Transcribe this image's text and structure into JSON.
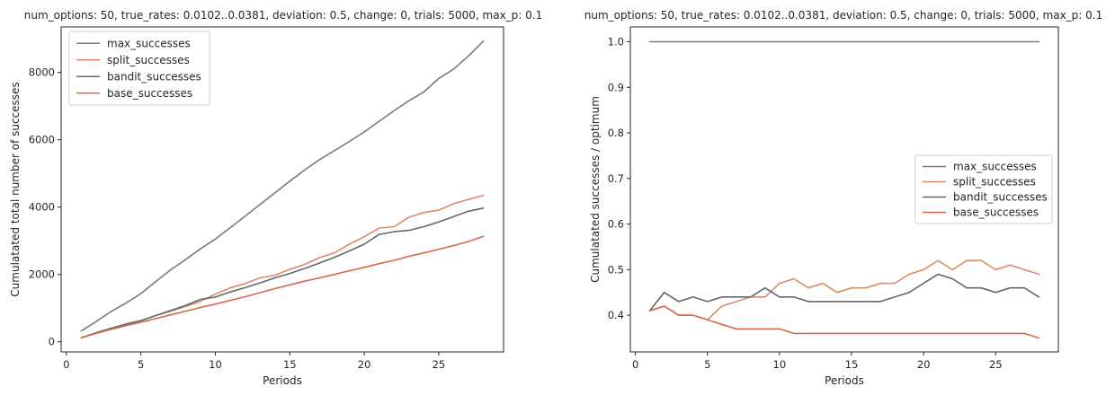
{
  "chart_data": [
    {
      "type": "line",
      "title": "num_options: 50, true_rates: 0.0102..0.0381, deviation: 0.5, change: 0, trials: 5000, max_p: 0.1",
      "xlabel": "Periods",
      "ylabel": "Cumulatated total number of successes",
      "xlim": [
        -0.35,
        29.35
      ],
      "ylim": [
        -300,
        9350
      ],
      "xticks": [
        0,
        5,
        10,
        15,
        20,
        25
      ],
      "yticks": [
        0,
        2000,
        4000,
        6000,
        8000
      ],
      "xtick_labels": [
        "0",
        "5",
        "10",
        "15",
        "20",
        "25"
      ],
      "ytick_labels": [
        "0",
        "2000",
        "4000",
        "6000",
        "8000"
      ],
      "grid": false,
      "legend_position": "upper-left",
      "x": [
        1,
        2,
        3,
        4,
        5,
        6,
        7,
        8,
        9,
        10,
        11,
        12,
        13,
        14,
        15,
        16,
        17,
        18,
        19,
        20,
        21,
        22,
        23,
        24,
        25,
        26,
        27,
        28
      ],
      "series": [
        {
          "name": "max_successes",
          "color": "#7a7a7a",
          "values": [
            320,
            600,
            900,
            1150,
            1430,
            1790,
            2140,
            2440,
            2760,
            3050,
            3390,
            3730,
            4080,
            4420,
            4770,
            5100,
            5410,
            5680,
            5950,
            6230,
            6550,
            6860,
            7160,
            7420,
            7820,
            8100,
            8490,
            8930
          ]
        },
        {
          "name": "split_successes",
          "color": "#e0896a",
          "values": [
            120,
            260,
            390,
            510,
            620,
            780,
            910,
            1050,
            1200,
            1420,
            1600,
            1730,
            1900,
            1980,
            2150,
            2300,
            2500,
            2640,
            2900,
            3120,
            3380,
            3420,
            3700,
            3840,
            3910,
            4100,
            4230,
            4350
          ]
        },
        {
          "name": "bandit_successes",
          "color": "#5b6b6b",
          "values": [
            120,
            270,
            400,
            530,
            630,
            780,
            930,
            1080,
            1260,
            1330,
            1480,
            1610,
            1750,
            1900,
            2030,
            2180,
            2340,
            2510,
            2700,
            2900,
            3190,
            3270,
            3310,
            3420,
            3560,
            3720,
            3880,
            3970
          ]
        },
        {
          "name": "base_successes",
          "color": "#d4694e",
          "values": [
            120,
            250,
            370,
            480,
            580,
            690,
            800,
            910,
            1020,
            1120,
            1230,
            1340,
            1460,
            1580,
            1690,
            1800,
            1900,
            2000,
            2110,
            2210,
            2320,
            2420,
            2540,
            2640,
            2750,
            2860,
            2980,
            3130
          ]
        }
      ]
    },
    {
      "type": "line",
      "title": "num_options: 50, true_rates: 0.0102..0.0381, deviation: 0.5, change: 0, trials: 5000, max_p: 0.1",
      "xlabel": "Periods",
      "ylabel": "Cumulatated successes / optimum",
      "xlim": [
        -0.35,
        29.35
      ],
      "ylim": [
        0.3195,
        1.0325
      ],
      "xticks": [
        0,
        5,
        10,
        15,
        20,
        25
      ],
      "yticks": [
        0.4,
        0.5,
        0.6,
        0.7,
        0.8,
        0.9,
        1.0
      ],
      "xtick_labels": [
        "0",
        "5",
        "10",
        "15",
        "20",
        "25"
      ],
      "ytick_labels": [
        "0.4",
        "0.5",
        "0.6",
        "0.7",
        "0.8",
        "0.9",
        "1.0"
      ],
      "grid": false,
      "legend_position": "center-right",
      "x": [
        1,
        2,
        3,
        4,
        5,
        6,
        7,
        8,
        9,
        10,
        11,
        12,
        13,
        14,
        15,
        16,
        17,
        18,
        19,
        20,
        21,
        22,
        23,
        24,
        25,
        26,
        27,
        28
      ],
      "series": [
        {
          "name": "max_successes",
          "color": "#7a7a7a",
          "values": [
            1,
            1,
            1,
            1,
            1,
            1,
            1,
            1,
            1,
            1,
            1,
            1,
            1,
            1,
            1,
            1,
            1,
            1,
            1,
            1,
            1,
            1,
            1,
            1,
            1,
            1,
            1,
            1
          ]
        },
        {
          "name": "split_successes",
          "color": "#e0896a",
          "values": [
            0.41,
            0.42,
            0.4,
            0.4,
            0.39,
            0.42,
            0.43,
            0.44,
            0.44,
            0.47,
            0.48,
            0.46,
            0.47,
            0.45,
            0.46,
            0.46,
            0.47,
            0.47,
            0.49,
            0.5,
            0.52,
            0.5,
            0.52,
            0.52,
            0.5,
            0.51,
            0.5,
            0.49
          ]
        },
        {
          "name": "bandit_successes",
          "color": "#5b6b6b",
          "values": [
            0.41,
            0.45,
            0.43,
            0.44,
            0.43,
            0.44,
            0.44,
            0.44,
            0.46,
            0.44,
            0.44,
            0.43,
            0.43,
            0.43,
            0.43,
            0.43,
            0.43,
            0.44,
            0.45,
            0.47,
            0.49,
            0.48,
            0.46,
            0.46,
            0.45,
            0.46,
            0.46,
            0.44
          ]
        },
        {
          "name": "base_successes",
          "color": "#d4694e",
          "values": [
            0.41,
            0.42,
            0.4,
            0.4,
            0.39,
            0.38,
            0.37,
            0.37,
            0.37,
            0.37,
            0.36,
            0.36,
            0.36,
            0.36,
            0.36,
            0.36,
            0.36,
            0.36,
            0.36,
            0.36,
            0.36,
            0.36,
            0.36,
            0.36,
            0.36,
            0.36,
            0.36,
            0.35
          ]
        }
      ]
    }
  ]
}
